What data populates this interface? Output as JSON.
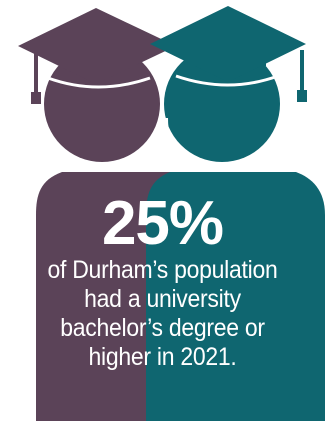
{
  "colors": {
    "left_figure": "#5b4358",
    "right_figure": "#0f6670",
    "text": "#ffffff",
    "background": "#ffffff"
  },
  "icons": {
    "left_graduate": "graduate-person-icon",
    "right_graduate": "graduate-person-icon"
  },
  "stat": {
    "value": "25%",
    "caption_lines": [
      "of Durham’s population",
      "had a university",
      "bachelor’s degree or",
      "higher in 2021."
    ]
  }
}
